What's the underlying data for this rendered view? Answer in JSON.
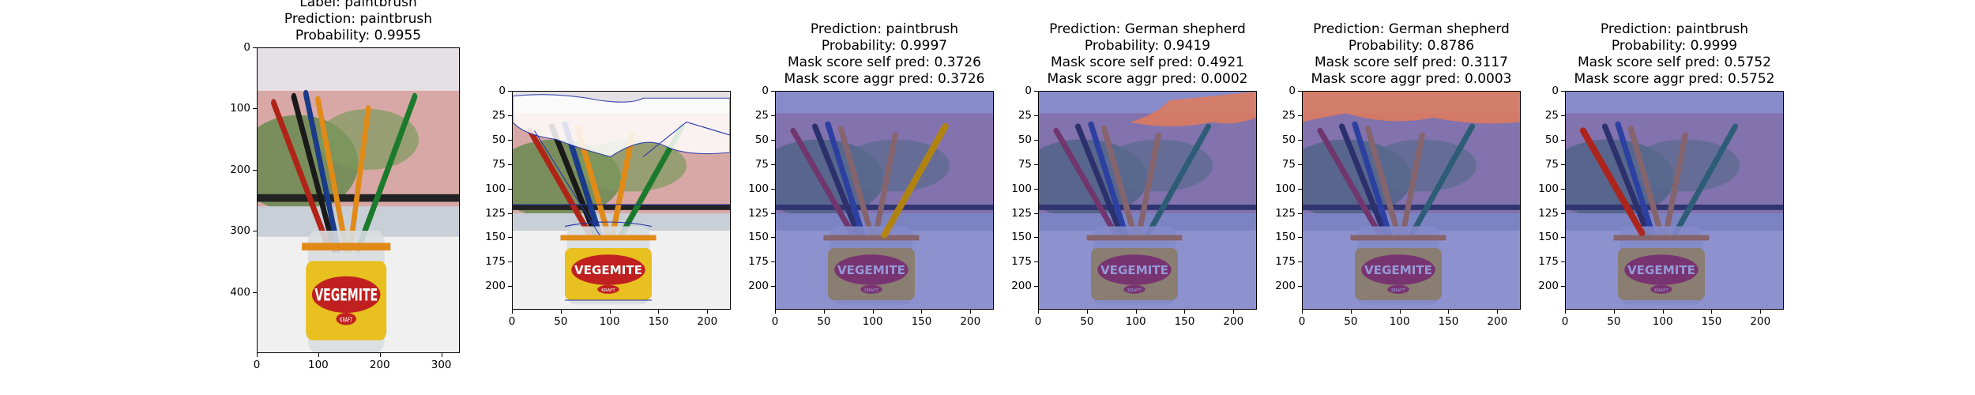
{
  "panels": [
    {
      "id": "original",
      "title_lines": [
        "Label: paintbrush",
        "Prediction: paintbrush",
        "Probability: 0.9955"
      ],
      "x_ticks": [
        "0",
        "100",
        "200",
        "300"
      ],
      "y_ticks": [
        "0",
        "100",
        "200",
        "300",
        "400"
      ],
      "overlay": "none"
    },
    {
      "id": "segments",
      "title_lines": [],
      "x_ticks": [
        "0",
        "50",
        "100",
        "150",
        "200"
      ],
      "y_ticks": [
        "0",
        "25",
        "50",
        "75",
        "100",
        "125",
        "150",
        "175",
        "200"
      ],
      "overlay": "segment-outlines"
    },
    {
      "id": "mask-1",
      "title_lines": [
        "Prediction: paintbrush",
        "Probability: 0.9997",
        "Mask score self pred: 0.3726",
        "Mask score aggr pred: 0.3726"
      ],
      "x_ticks": [
        "0",
        "50",
        "100",
        "150",
        "200"
      ],
      "y_ticks": [
        "0",
        "25",
        "50",
        "75",
        "100",
        "125",
        "150",
        "175",
        "200"
      ],
      "overlay": "blue-mask-highlight-right-brush"
    },
    {
      "id": "mask-2",
      "title_lines": [
        "Prediction: German shepherd",
        "Probability: 0.9419",
        "Mask score self pred: 0.4921",
        "Mask score aggr pred: 0.0002"
      ],
      "x_ticks": [
        "0",
        "50",
        "100",
        "150",
        "200"
      ],
      "y_ticks": [
        "0",
        "25",
        "50",
        "75",
        "100",
        "125",
        "150",
        "175",
        "200"
      ],
      "overlay": "blue-mask-highlight-top-right"
    },
    {
      "id": "mask-3",
      "title_lines": [
        "Prediction: German shepherd",
        "Probability: 0.8786",
        "Mask score self pred: 0.3117",
        "Mask score aggr pred: 0.0003"
      ],
      "x_ticks": [
        "0",
        "50",
        "100",
        "150",
        "200"
      ],
      "y_ticks": [
        "0",
        "25",
        "50",
        "75",
        "100",
        "125",
        "150",
        "175",
        "200"
      ],
      "overlay": "blue-mask-highlight-top-left"
    },
    {
      "id": "mask-4",
      "title_lines": [
        "Prediction: paintbrush",
        "Probability: 0.9999",
        "Mask score self pred: 0.5752",
        "Mask score aggr pred: 0.5752"
      ],
      "x_ticks": [
        "0",
        "50",
        "100",
        "150",
        "200"
      ],
      "y_ticks": [
        "0",
        "25",
        "50",
        "75",
        "100",
        "125",
        "150",
        "175",
        "200"
      ],
      "overlay": "blue-mask-highlight-left-brush"
    }
  ],
  "jar_label": "VEGEMITE",
  "jar_sublabel": "KRAFT",
  "colors": {
    "wall": "#d8a8a6",
    "window_frame": "#222222",
    "sill": "#f0f0f0",
    "foliage": "#6a8a50",
    "jar_yellow": "#e8c020",
    "jar_red": "#c02020",
    "mask_blue": "#3c46b4",
    "highlight_red": "#e07a5a",
    "brush_red": "#b02418",
    "brush_green": "#1c7a2c",
    "brush_orange": "#e08a18",
    "brush_blue": "#1a3a8a"
  }
}
